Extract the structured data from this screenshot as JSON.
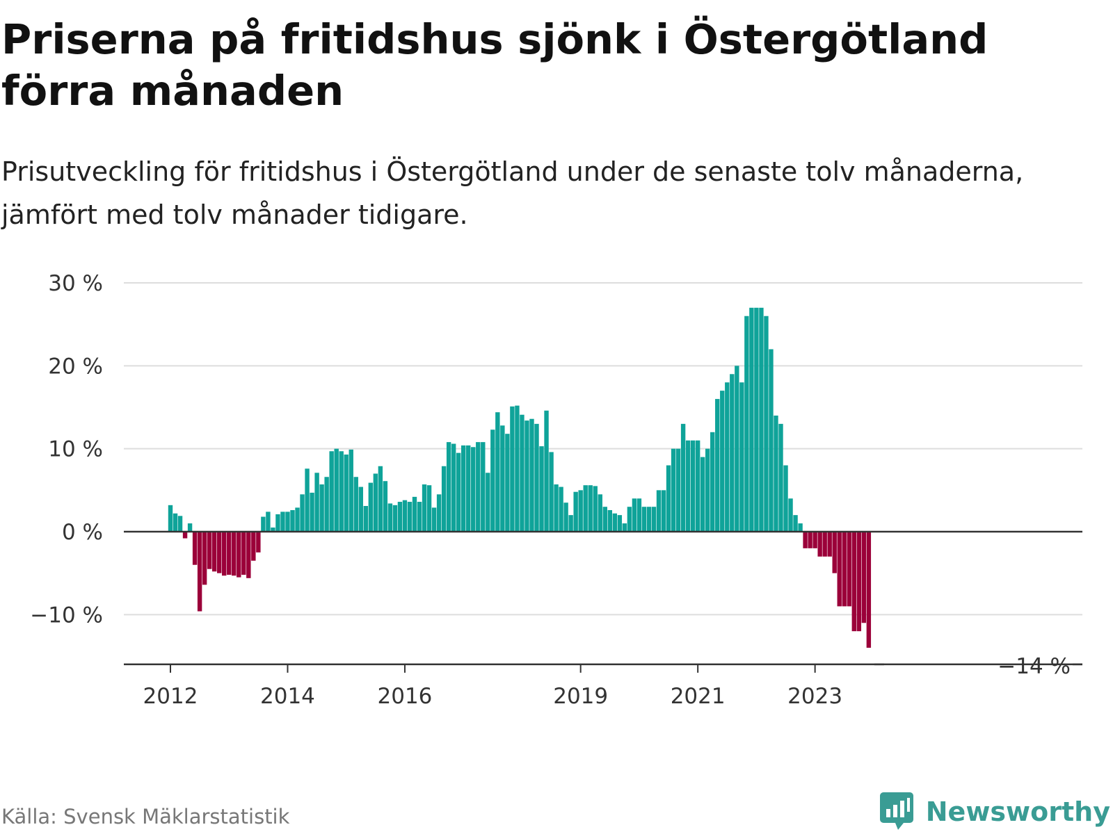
{
  "title": "Priserna på fritidshus sjönk i Östergötland förra månaden",
  "subtitle": "Prisutveckling för fritidshus i Östergötland under de senaste tolv månaderna, jämfört med tolv månader tidigare.",
  "source": "Källa: Svensk Mäklarstatistik",
  "brand": {
    "name": "Newsworthy",
    "icon": "newsworthy-logo-icon"
  },
  "colors": {
    "positive": "#0fa399",
    "negative": "#9b0039",
    "grid": "#dddddd",
    "zero_line": "#333333",
    "brand": "#3a9c94"
  },
  "chart_data": {
    "type": "bar",
    "title": "Priserna på fritidshus sjönk i Östergötland förra månaden",
    "unit": "%",
    "ylim": [
      -16,
      30
    ],
    "yticks": [
      {
        "value": 30,
        "label": "30 %"
      },
      {
        "value": 20,
        "label": "20 %"
      },
      {
        "value": 10,
        "label": "10 %"
      },
      {
        "value": 0,
        "label": "0 %"
      },
      {
        "value": -10,
        "label": "−10 %"
      }
    ],
    "xticks": [
      {
        "label": "2012",
        "index": 0
      },
      {
        "label": "2014",
        "index": 24
      },
      {
        "label": "2016",
        "index": 48
      },
      {
        "label": "2019",
        "index": 84
      },
      {
        "label": "2021",
        "index": 108
      },
      {
        "label": "2023",
        "index": 132
      }
    ],
    "x_start": "2012-01",
    "x_end": "2023-10",
    "grid": true,
    "last_value_label": "−14 %",
    "values": [
      3.2,
      2.2,
      1.9,
      -0.8,
      1.0,
      -4.0,
      -9.6,
      -6.4,
      -4.5,
      -4.8,
      -5.0,
      -5.3,
      -5.2,
      -5.3,
      -5.5,
      -5.2,
      -5.6,
      -3.5,
      -2.5,
      1.8,
      2.4,
      0.5,
      2.1,
      2.4,
      2.4,
      2.6,
      2.9,
      4.5,
      7.6,
      4.7,
      7.1,
      5.7,
      6.6,
      9.7,
      10.0,
      9.7,
      9.3,
      9.9,
      6.6,
      5.4,
      3.1,
      5.9,
      7.0,
      7.9,
      6.1,
      3.4,
      3.2,
      3.6,
      3.8,
      3.6,
      4.2,
      3.6,
      5.7,
      5.6,
      2.9,
      4.5,
      7.9,
      10.8,
      10.6,
      9.5,
      10.4,
      10.4,
      10.2,
      10.8,
      10.8,
      7.1,
      12.3,
      14.4,
      12.8,
      11.8,
      15.1,
      15.2,
      14.1,
      13.4,
      13.6,
      13.0,
      10.3,
      14.6,
      9.6,
      5.7,
      5.4,
      3.5,
      2.0,
      4.8,
      5.0,
      5.6,
      5.6,
      5.5,
      4.5,
      3.0,
      2.6,
      2.2,
      2.0,
      1.0,
      3.0,
      4.0,
      4.0,
      3.0,
      3.0,
      3.0,
      5.0,
      5.0,
      8.0,
      10.0,
      10.0,
      13.0,
      11.0,
      11.0,
      11.0,
      9.0,
      10.0,
      12.0,
      16.0,
      17.0,
      18.0,
      19.0,
      20.0,
      18.0,
      26.0,
      27.0,
      27.0,
      27.0,
      26.0,
      22.0,
      14.0,
      13.0,
      8.0,
      4.0,
      2.0,
      1.0,
      -2.0,
      -2.0,
      -2.0,
      -3.0,
      -3.0,
      -3.0,
      -5.0,
      -9.0,
      -9.0,
      -9.0,
      -12.0,
      -12.0,
      -11.0,
      -14.0
    ]
  }
}
